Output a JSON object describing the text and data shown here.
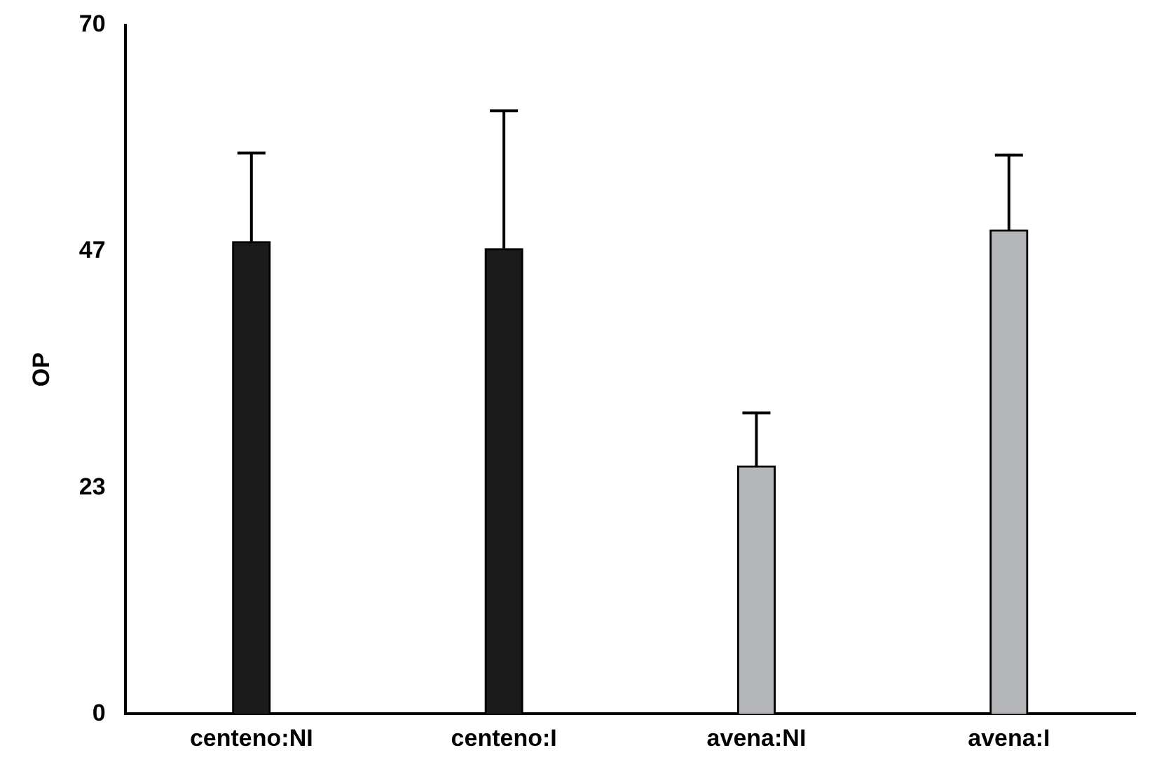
{
  "chart_data": {
    "type": "bar",
    "ylabel": "OP",
    "categories": [
      "centeno:NI",
      "centeno:I",
      "avena:NI",
      "avena:I"
    ],
    "values": [
      48,
      47.3,
      25.2,
      49.2
    ],
    "colors": [
      "#1a1a1a",
      "#1a1a1a",
      "#b4b6ba",
      "#b4b6ba"
    ],
    "errors": [
      9,
      14,
      5.4,
      7.6
    ],
    "ylim": [
      0,
      70
    ],
    "yticks": [
      0,
      23,
      47,
      70
    ],
    "grid": false,
    "legend": false
  }
}
